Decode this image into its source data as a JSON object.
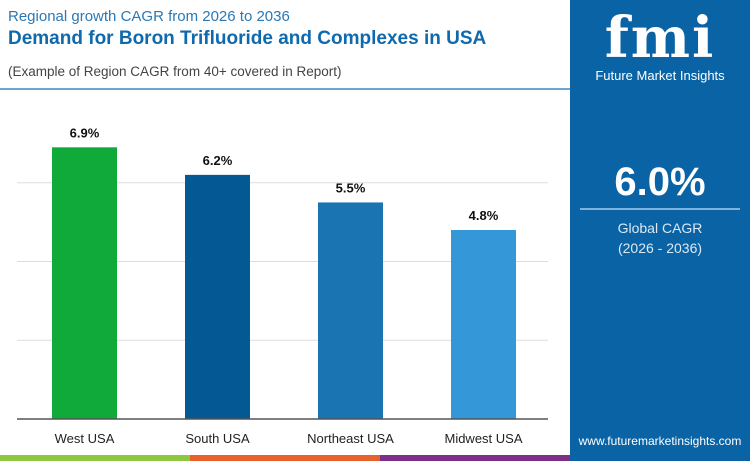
{
  "header": {
    "subtitle": "Regional growth CAGR from 2026 to 2036",
    "title": "Demand for Boron Trifluoride and Complexes in USA",
    "note": "(Example of Region CAGR from 40+ covered in Report)"
  },
  "sidebar": {
    "logo_text": "fmi",
    "brand": "Future Market Insights",
    "global_value": "6.0%",
    "global_label": "Global CAGR",
    "global_period": "(2026 - 2036)",
    "url": "www.futuremarketinsights.com",
    "bg_color": "#0a63a4"
  },
  "strip_colors": [
    "#8dc63f",
    "#e8602c",
    "#7b2f86"
  ],
  "chart_data": {
    "type": "bar",
    "categories": [
      "West USA",
      "South USA",
      "Northeast USA",
      "Midwest USA"
    ],
    "values": [
      6.9,
      6.2,
      5.5,
      4.8
    ],
    "data_labels": [
      "6.9%",
      "6.2%",
      "5.5%",
      "4.8%"
    ],
    "colors": [
      "#10aa3a",
      "#045894",
      "#1a74b2",
      "#3397d8"
    ],
    "ylim": [
      0,
      8
    ],
    "grid": true,
    "xlabel": "",
    "ylabel": ""
  }
}
